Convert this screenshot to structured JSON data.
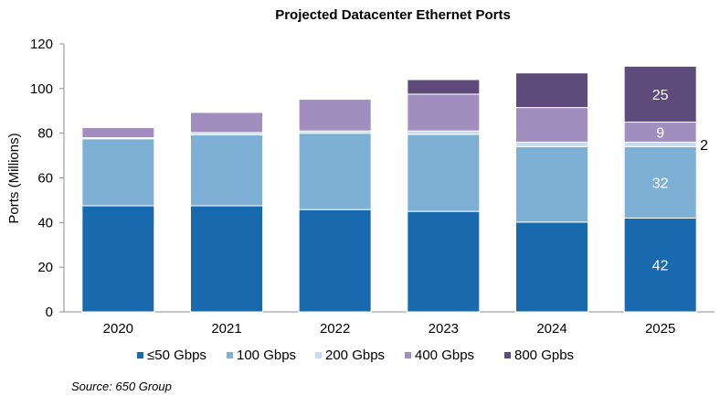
{
  "chart_data": {
    "type": "bar",
    "stacked": true,
    "title": "Projected Datacenter Ethernet Ports",
    "xlabel": "",
    "ylabel": "Ports (Millions)",
    "ylim": [
      0,
      120
    ],
    "yticks": [
      "0",
      "20",
      "40",
      "60",
      "80",
      "100",
      "120"
    ],
    "grid": false,
    "legend_position": "bottom",
    "categories": [
      "2020",
      "2021",
      "2022",
      "2023",
      "2024",
      "2025"
    ],
    "series": [
      {
        "name": "≤50 Gbps",
        "color": "#1869ad",
        "values": [
          47.5,
          47.5,
          45.8,
          45,
          40.2,
          42
        ]
      },
      {
        "name": "100 Gbps",
        "color": "#7eb0d5",
        "values": [
          30,
          31.8,
          34.2,
          34.5,
          33.8,
          32
        ]
      },
      {
        "name": "200 Gbps",
        "color": "#c3dcee",
        "values": [
          0.5,
          1,
          1,
          1.5,
          2,
          2
        ]
      },
      {
        "name": "400 Gbps",
        "color": "#a28dbf",
        "values": [
          4.5,
          9,
          14.2,
          16.5,
          15.5,
          9
        ]
      },
      {
        "name": "800 Gpbs",
        "color": "#5f4a7c",
        "values": [
          0,
          0,
          0,
          6.5,
          15.5,
          25
        ]
      }
    ],
    "data_labels": [
      {
        "category": "2025",
        "series": "≤50 Gbps",
        "text": "42",
        "placement": "inside"
      },
      {
        "category": "2025",
        "series": "100 Gbps",
        "text": "32",
        "placement": "inside"
      },
      {
        "category": "2025",
        "series": "200 Gbps",
        "text": "2",
        "placement": "outside-right"
      },
      {
        "category": "2025",
        "series": "400 Gbps",
        "text": "9",
        "placement": "inside"
      },
      {
        "category": "2025",
        "series": "800 Gpbs",
        "text": "25",
        "placement": "inside"
      }
    ]
  },
  "source": "Source: 650 Group"
}
